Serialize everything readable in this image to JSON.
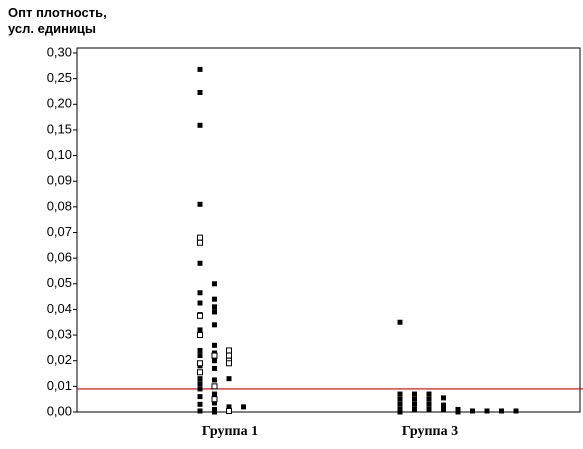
{
  "chart_data": {
    "type": "dot",
    "ylabel": [
      "Опт плотность,",
      "усл. единицы"
    ],
    "categories": [
      "Группа 1",
      "Группа 3"
    ],
    "ylim": [
      0,
      0.3
    ],
    "yticks": [
      {
        "value": 0,
        "label": "0,00"
      },
      {
        "value": 0.01,
        "label": "0,01"
      },
      {
        "value": 0.02,
        "label": "0,02"
      },
      {
        "value": 0.03,
        "label": "0,03"
      },
      {
        "value": 0.04,
        "label": "0,04"
      },
      {
        "value": 0.05,
        "label": "0,05"
      },
      {
        "value": 0.06,
        "label": "0,06"
      },
      {
        "value": 0.07,
        "label": "0,07"
      },
      {
        "value": 0.08,
        "label": "0,08"
      },
      {
        "value": 0.09,
        "label": "0,09"
      },
      {
        "value": 0.1,
        "label": "0,10"
      },
      {
        "value": 0.15,
        "label": "0,15"
      },
      {
        "value": 0.2,
        "label": "0,20"
      },
      {
        "value": 0.25,
        "label": "0,25"
      },
      {
        "value": 0.3,
        "label": "0,30"
      }
    ],
    "color": "#000000",
    "threshold": 0.009,
    "threshold_color": "#cc0000",
    "columns": [
      [
        {
          "filled": [
            0.268,
            0.223,
            0.159,
            0.081,
            0.058,
            0.0465,
            0.0425,
            0.038,
            0.032,
            0.024,
            0.022,
            0.018,
            0.013,
            0.011,
            0.009,
            0.006,
            0.003,
            0.0004
          ],
          "open": [
            0.068,
            0.066,
            0.0375,
            0.03,
            0.019,
            0.0155
          ]
        },
        {
          "filled": [
            0.05,
            0.044,
            0.041,
            0.039,
            0.034,
            0.026,
            0.023,
            0.02,
            0.017,
            0.0125,
            0.007,
            0.0035,
            0.001,
            0
          ],
          "open": [
            0.022,
            0.01,
            0.005
          ]
        },
        {
          "filled": [
            0.013,
            0.002
          ],
          "open": [
            0.024,
            0.022,
            0.02,
            0.019,
            0.0004
          ]
        },
        {
          "filled": [
            0.002
          ],
          "open": []
        }
      ],
      [
        {
          "filled": [
            0.035,
            0.007,
            0.005,
            0.003,
            0.001,
            0
          ],
          "open": []
        },
        {
          "filled": [
            0.007,
            0.005,
            0.003,
            0.001
          ],
          "open": []
        },
        {
          "filled": [
            0.007,
            0.005,
            0.003,
            0.001
          ],
          "open": []
        },
        {
          "filled": [
            0.0055,
            0.0027,
            0.0008
          ],
          "open": []
        },
        {
          "filled": [
            0.001,
            0
          ],
          "open": []
        },
        {
          "filled": [
            0.0004
          ],
          "open": []
        },
        {
          "filled": [
            0.0004
          ],
          "open": []
        },
        {
          "filled": [
            0.0004
          ],
          "open": []
        },
        {
          "filled": [
            0.0004
          ],
          "open": []
        }
      ]
    ]
  }
}
